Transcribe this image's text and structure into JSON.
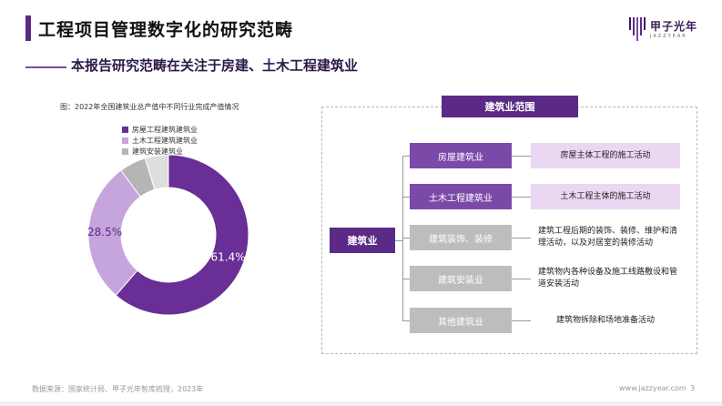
{
  "header": {
    "title": "工程项目管理数字化的研究范畴",
    "subtitle": "本报告研究范畴在关注于房建、土木工程建筑业",
    "logo_cn": "甲子光年",
    "logo_en": "JAZZYEAR"
  },
  "chart_data": {
    "type": "pie",
    "title": "图：2022年全国建筑业总产值中不同行业完成产值情况",
    "categories": [
      "房屋工程建筑建筑业",
      "土木工程建筑建筑业",
      "建筑安装建筑业",
      ""
    ],
    "values": [
      61.4,
      28.5,
      5.4,
      4.7
    ],
    "data_labels": [
      "61.4%",
      "28.5%",
      "",
      ""
    ],
    "colors": [
      "#6a2e97",
      "#c6a5dd",
      "#b5b5b5",
      "#dedede"
    ],
    "donut": true,
    "legend_position": "top-left"
  },
  "scope": {
    "header": "建筑业范围",
    "root": "建筑业",
    "categories": [
      {
        "label": "房屋建筑业",
        "desc": "房屋主体工程的施工活动"
      },
      {
        "label": "土木工程建筑业",
        "desc": "土木工程主体的施工活动"
      },
      {
        "label": "建筑装饰、装修",
        "desc": "建筑工程后期的装饰、装修、维护和清理活动，以及对居室的装修活动"
      },
      {
        "label": "建筑安装业",
        "desc": "建筑物内各种设备及施工线路敷设和管道安装活动"
      },
      {
        "label": "其他建筑业",
        "desc": "建筑物拆除和场地准备活动"
      }
    ],
    "colors": {
      "header": "#5b2a86",
      "highlight_node": "#7b4aa8",
      "gray_node": "#bdbdbd",
      "highlight_desc": "#ead8f3"
    }
  },
  "footer": {
    "source": "数据来源：国家统计局、甲子光年智库梳理，2023年",
    "url": "www.jazzyear.com",
    "page": "3"
  }
}
